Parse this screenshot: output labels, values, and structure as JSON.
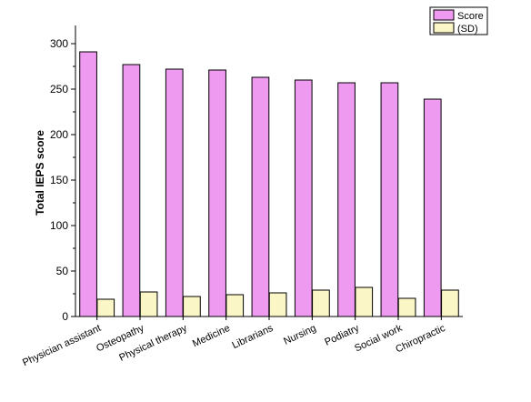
{
  "chart_data": {
    "type": "bar",
    "title": "",
    "xlabel": "",
    "ylabel": "Total IEPS score",
    "ylim": [
      0,
      320
    ],
    "yticks": [
      0,
      50,
      100,
      150,
      200,
      250,
      300
    ],
    "grid": false,
    "legend_position": "top-right",
    "categories": [
      "Physician assistant",
      "Osteopathy",
      "Physical therapy",
      "Medicine",
      "Librarians",
      "Nursing",
      "Podiatry",
      "Social work",
      "Chiropractic"
    ],
    "series": [
      {
        "name": "Score",
        "color": "#ee9af0",
        "values": [
          291,
          277,
          272,
          271,
          263,
          260,
          257,
          257,
          239
        ]
      },
      {
        "name": "(SD)",
        "color": "#fbf6c5",
        "values": [
          19,
          27,
          22,
          24,
          26,
          29,
          32,
          20,
          29
        ]
      }
    ]
  }
}
